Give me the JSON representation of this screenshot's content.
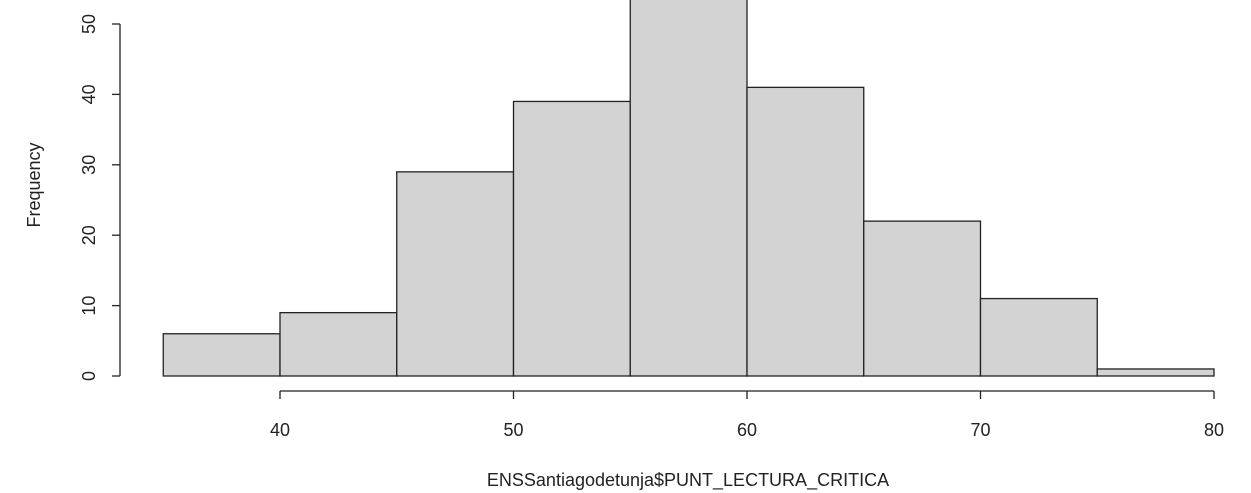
{
  "chart_data": {
    "type": "bar",
    "title": "",
    "xlabel": "ENSSantiagodetunja$PUNT_LECTURA_CRITICA",
    "ylabel": "Frequency",
    "bins": [
      {
        "start": 35,
        "end": 40,
        "count": 6
      },
      {
        "start": 40,
        "end": 45,
        "count": 9
      },
      {
        "start": 45,
        "end": 50,
        "count": 29
      },
      {
        "start": 50,
        "end": 55,
        "count": 39
      },
      {
        "start": 55,
        "end": 60,
        "count": 55
      },
      {
        "start": 60,
        "end": 65,
        "count": 41
      },
      {
        "start": 65,
        "end": 70,
        "count": 22
      },
      {
        "start": 70,
        "end": 75,
        "count": 11
      },
      {
        "start": 75,
        "end": 80,
        "count": 1
      }
    ],
    "xticks": [
      40,
      50,
      60,
      70,
      80
    ],
    "xtick_labels": [
      "40",
      "50",
      "60",
      "70",
      "80"
    ],
    "yticks": [
      0,
      10,
      20,
      30,
      40,
      50
    ],
    "ytick_labels": [
      "0",
      "10",
      "20",
      "30",
      "40",
      "50"
    ],
    "xlim": [
      35,
      80
    ],
    "ylim": [
      0,
      50
    ],
    "grid": false,
    "bar_color": "#d3d3d3",
    "edge_color": "#222222"
  }
}
